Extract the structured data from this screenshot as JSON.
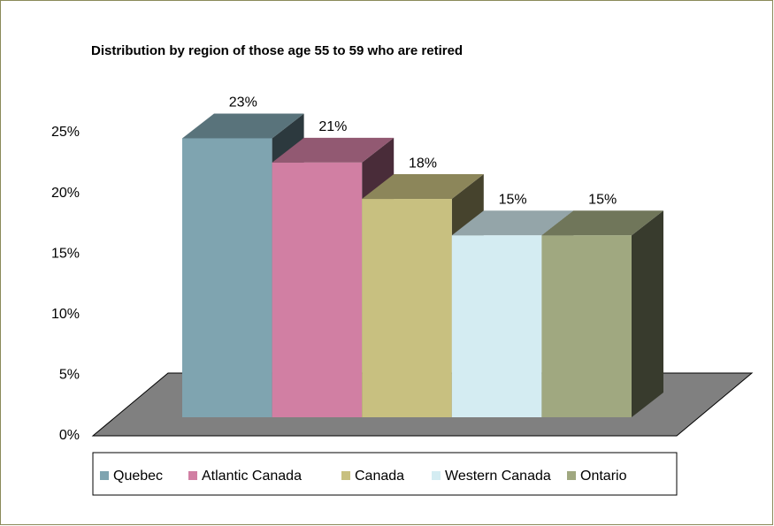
{
  "chart_data": {
    "type": "bar3d",
    "title": "Distribution by region of those age 55 to 59 who are retired",
    "categories": [
      "Quebec",
      "Atlantic Canada",
      "Canada",
      "Western Canada",
      "Ontario"
    ],
    "values": [
      23,
      21,
      18,
      15,
      15
    ],
    "value_labels": [
      "23%",
      "21%",
      "18%",
      "15%",
      "15%"
    ],
    "colors": [
      "#7fa4b0",
      "#d17fa3",
      "#c8c080",
      "#d4ecf2",
      "#a0a880"
    ],
    "ylim": [
      0,
      25
    ],
    "yticks": [
      {
        "value": 0,
        "label": "0%"
      },
      {
        "value": 5,
        "label": "5%"
      },
      {
        "value": 10,
        "label": "10%"
      },
      {
        "value": 15,
        "label": "15%"
      },
      {
        "value": 20,
        "label": "20%"
      },
      {
        "value": 25,
        "label": "25%"
      }
    ],
    "legend": "bottom"
  }
}
